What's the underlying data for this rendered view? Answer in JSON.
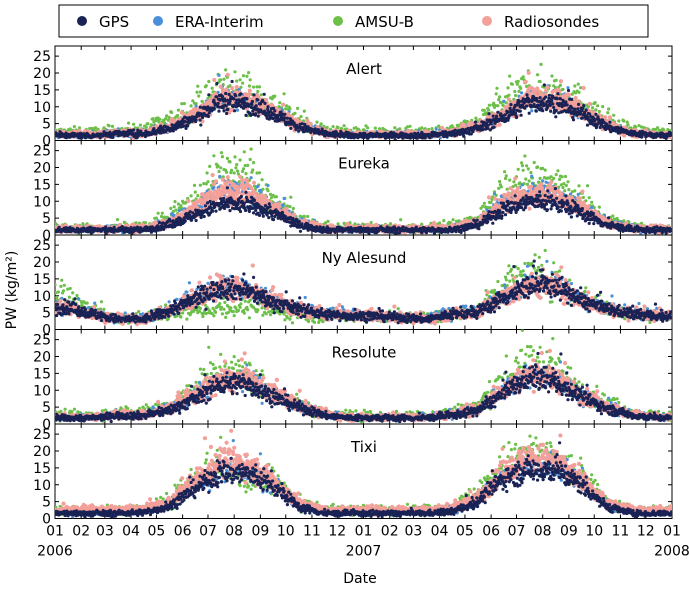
{
  "chart_data": {
    "type": "scatter",
    "legend": {
      "placement": "top",
      "entries": [
        {
          "name": "GPS",
          "color": "#1a2355"
        },
        {
          "name": "ERA-Interim",
          "color": "#4a90d9"
        },
        {
          "name": "AMSU-B",
          "color": "#6cc04a"
        },
        {
          "name": "Radiosondes",
          "color": "#f4a09a"
        }
      ]
    },
    "xlabel": "Date",
    "ylabel": "PW (kg/m²)",
    "ylim": [
      0,
      28
    ],
    "yticks": [
      0,
      5,
      10,
      15,
      20,
      25
    ],
    "xlim": [
      "2006-01-01",
      "2008-01-01"
    ],
    "xticks": [
      {
        "date": "2006-01-01",
        "label": "01"
      },
      {
        "date": "2006-02-01",
        "label": "02"
      },
      {
        "date": "2006-03-01",
        "label": "03"
      },
      {
        "date": "2006-04-01",
        "label": "04"
      },
      {
        "date": "2006-05-01",
        "label": "05"
      },
      {
        "date": "2006-06-01",
        "label": "06"
      },
      {
        "date": "2006-07-01",
        "label": "07"
      },
      {
        "date": "2006-08-01",
        "label": "08"
      },
      {
        "date": "2006-09-01",
        "label": "09"
      },
      {
        "date": "2006-10-01",
        "label": "10"
      },
      {
        "date": "2006-11-01",
        "label": "11"
      },
      {
        "date": "2006-12-01",
        "label": "12"
      },
      {
        "date": "2007-01-01",
        "label": "01"
      },
      {
        "date": "2007-02-01",
        "label": "02"
      },
      {
        "date": "2007-03-01",
        "label": "03"
      },
      {
        "date": "2007-04-01",
        "label": "04"
      },
      {
        "date": "2007-05-01",
        "label": "05"
      },
      {
        "date": "2007-06-01",
        "label": "06"
      },
      {
        "date": "2007-07-01",
        "label": "07"
      },
      {
        "date": "2007-08-01",
        "label": "08"
      },
      {
        "date": "2007-09-01",
        "label": "09"
      },
      {
        "date": "2007-10-01",
        "label": "10"
      },
      {
        "date": "2007-11-01",
        "label": "11"
      },
      {
        "date": "2007-12-01",
        "label": "12"
      },
      {
        "date": "2008-01-01",
        "label": "01"
      }
    ],
    "year_labels": [
      {
        "date": "2006-01-01",
        "label": "2006"
      },
      {
        "date": "2007-01-01",
        "label": "2007"
      },
      {
        "date": "2008-01-01",
        "label": "2008"
      }
    ],
    "grid": false,
    "panels": [
      {
        "title": "Alert",
        "series_monthly": {
          "GPS": [
            1.5,
            1.5,
            2,
            2,
            3.5,
            6.5,
            11.5,
            11,
            8,
            4,
            2,
            1.5,
            1.5,
            1.5,
            1.5,
            2,
            3.5,
            7,
            11.5,
            11,
            8,
            4,
            2,
            1.5
          ],
          "ERA-Interim": [
            1.7,
            1.7,
            2.2,
            2.2,
            4,
            7.5,
            12.5,
            12,
            9,
            4.5,
            2.3,
            1.7,
            1.7,
            1.7,
            1.7,
            2.2,
            4,
            7.5,
            13,
            12,
            8.5,
            4.5,
            2.2,
            1.7
          ],
          "AMSU-B": [
            2.5,
            2.5,
            3,
            3.5,
            6,
            10,
            15.5,
            15,
            11,
            6,
            3,
            2.5,
            2.5,
            2.5,
            2.5,
            3,
            5.5,
            12,
            16,
            15.5,
            12,
            6,
            3,
            2.5
          ],
          "Radiosondes": [
            1.8,
            1.8,
            2.2,
            2.3,
            4,
            7.5,
            12.5,
            12,
            9,
            4.5,
            2.2,
            1.8,
            1.8,
            1.8,
            1.8,
            2.3,
            4,
            7.5,
            12.5,
            12,
            9,
            4.5,
            2.2,
            1.8
          ]
        }
      },
      {
        "title": "Eureka",
        "series_monthly": {
          "GPS": [
            1.5,
            1.5,
            1.5,
            1.5,
            3,
            6,
            9,
            9,
            6.5,
            3,
            1.5,
            1.5,
            1.5,
            1.5,
            1.5,
            1.5,
            3,
            7.5,
            10,
            9.5,
            6.5,
            3,
            1.5,
            1.5
          ],
          "ERA-Interim": [
            1.8,
            1.8,
            1.8,
            2,
            4,
            8.5,
            14,
            14,
            9,
            4,
            2,
            1.8,
            1.8,
            1.8,
            1.8,
            2,
            4,
            10,
            12.5,
            12.5,
            8.5,
            4,
            2,
            1.8
          ],
          "AMSU-B": [
            2.2,
            2,
            2.5,
            2.5,
            5,
            11,
            19,
            19,
            10,
            4.5,
            2.5,
            2.2,
            2.2,
            2.2,
            2.2,
            2.5,
            5,
            14,
            17.5,
            17,
            10,
            4.5,
            2.5,
            2.2
          ],
          "Radiosondes": [
            1.8,
            1.8,
            1.8,
            2,
            3.5,
            8,
            13,
            13,
            8,
            3.5,
            2,
            1.8,
            1.8,
            1.8,
            1.8,
            2,
            3.5,
            9.5,
            12,
            12,
            8,
            3.5,
            2,
            1.8
          ]
        }
      },
      {
        "title": "Ny Alesund",
        "series_monthly": {
          "GPS": [
            6.5,
            4.5,
            3,
            3,
            5.5,
            9,
            12.5,
            11.5,
            8,
            6,
            4.5,
            4,
            4,
            3.5,
            3,
            4.5,
            5,
            9.5,
            13,
            13,
            8.5,
            6,
            4.5,
            4
          ],
          "ERA-Interim": [
            7,
            5,
            3,
            3.5,
            6,
            10,
            13,
            12.5,
            8.5,
            6.5,
            5,
            4.5,
            4,
            3.5,
            3.5,
            5,
            6,
            10,
            13.5,
            14,
            9,
            6.5,
            5,
            4.5
          ],
          "AMSU-B": [
            10,
            5,
            3,
            3.5,
            5,
            5.5,
            6.5,
            6.5,
            5.5,
            4.5,
            4,
            4,
            4,
            3.5,
            3.5,
            4.5,
            6,
            13,
            17,
            14,
            10,
            6,
            4.5,
            4
          ],
          "Radiosondes": [
            6.5,
            4.5,
            3,
            3,
            5.5,
            9,
            12.5,
            12,
            8,
            6,
            4.5,
            4,
            4,
            3.5,
            3,
            4.5,
            5,
            9.5,
            13,
            13,
            8.5,
            6,
            4.5,
            4
          ]
        }
      },
      {
        "title": "Resolute",
        "series_monthly": {
          "GPS": [
            1.8,
            1.8,
            2.5,
            2.5,
            4,
            7.5,
            12,
            12,
            8,
            5,
            2.5,
            1.8,
            1.8,
            1.8,
            1.8,
            2.5,
            4,
            9,
            14,
            12.5,
            8,
            4.5,
            2.5,
            1.8
          ],
          "ERA-Interim": [
            2,
            2,
            2.8,
            2.8,
            4.5,
            8.5,
            13,
            13,
            9,
            5.5,
            2.8,
            2,
            2,
            2,
            2,
            2.8,
            4.5,
            10,
            15,
            13.5,
            8.5,
            5,
            2.8,
            2
          ],
          "AMSU-B": [
            2.5,
            2.5,
            3.5,
            3.5,
            5.5,
            11,
            16,
            15,
            9,
            6,
            3,
            2.5,
            2.5,
            2.5,
            2.5,
            3.5,
            5.5,
            13,
            19,
            16,
            10,
            6,
            3,
            2.5
          ],
          "Radiosondes": [
            2,
            2,
            2.8,
            2.8,
            4.5,
            8.5,
            13,
            13,
            9,
            5.5,
            2.8,
            2,
            2,
            2,
            2,
            2.8,
            4.5,
            10,
            15,
            13.5,
            8.5,
            5,
            2.8,
            2
          ]
        }
      },
      {
        "title": "Tixi",
        "series_monthly": {
          "GPS": [
            1.5,
            1.5,
            1.5,
            1.8,
            3.5,
            9,
            13.5,
            13.5,
            9.5,
            3.5,
            1.5,
            1.5,
            1.5,
            1.5,
            1.5,
            2,
            5,
            12,
            14.5,
            14.5,
            10,
            3.5,
            1.5,
            1.5
          ],
          "ERA-Interim": [
            2,
            2,
            2,
            2.3,
            4,
            10,
            14.5,
            14.5,
            10,
            4,
            2,
            2,
            2,
            2,
            2,
            2.5,
            5.5,
            13,
            15.5,
            15,
            10.5,
            4,
            2,
            2
          ],
          "AMSU-B": [
            2.5,
            2.5,
            2.5,
            2.8,
            5,
            13,
            17,
            11,
            12,
            5,
            2.5,
            2.5,
            2.5,
            2.5,
            2.5,
            3,
            8,
            16,
            20,
            17,
            12,
            5,
            2.5,
            2.5
          ],
          "Radiosondes": [
            2.5,
            2.5,
            2.5,
            2.8,
            4.5,
            11,
            17,
            16,
            11,
            4.5,
            2.5,
            2.5,
            2.5,
            2.5,
            2.5,
            3,
            6,
            14,
            18,
            17,
            11,
            4.5,
            2.5,
            2.5
          ]
        }
      }
    ]
  }
}
